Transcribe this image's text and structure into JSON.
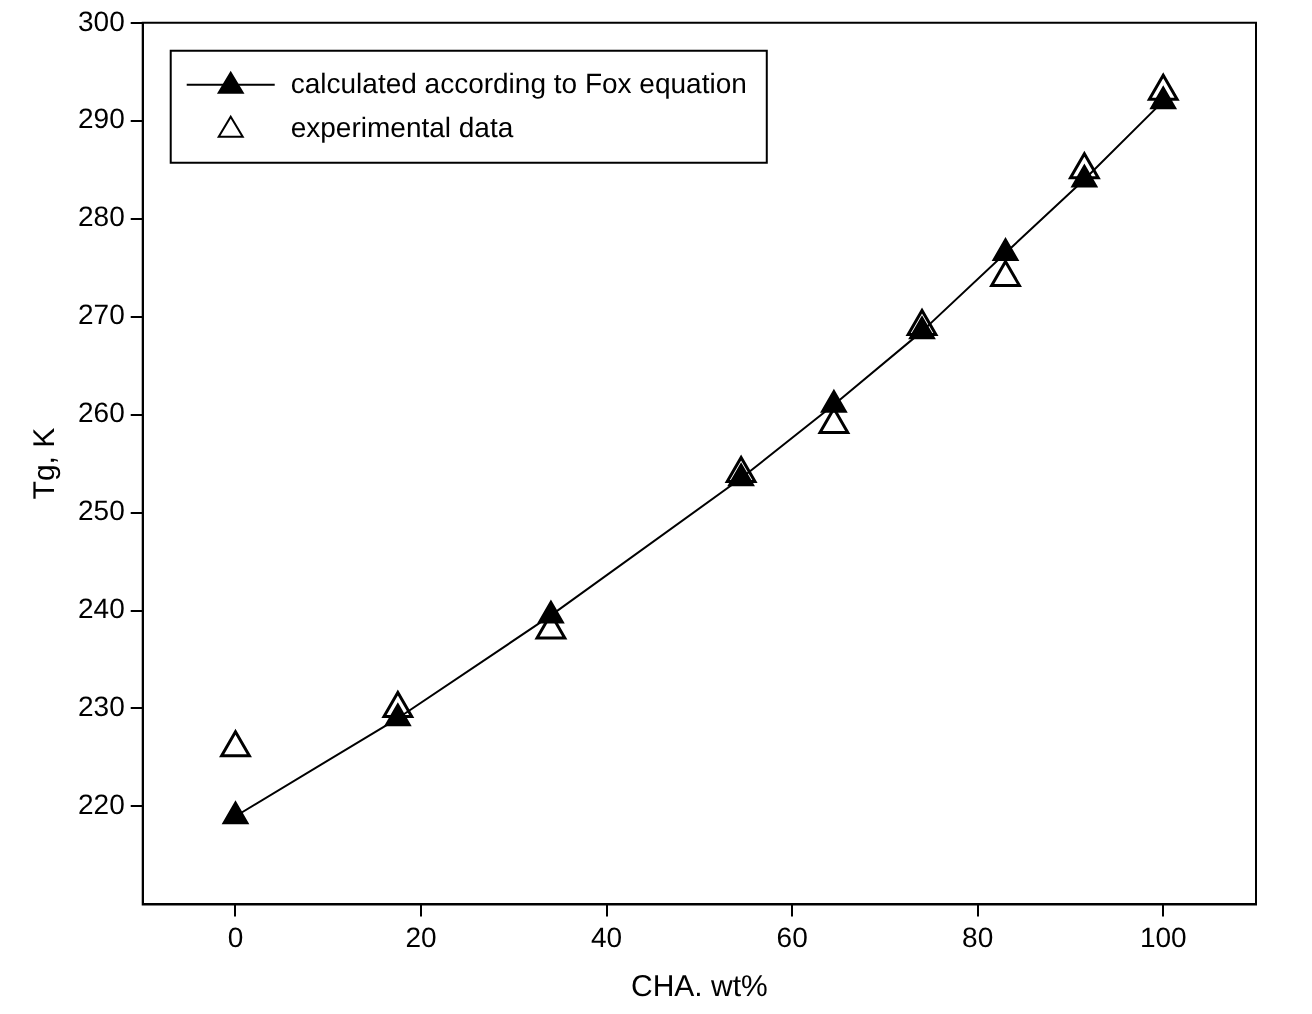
{
  "chart_data": {
    "type": "line",
    "xlabel": "CHA. wt%",
    "ylabel": "Tg, K",
    "xlim": [
      -10,
      110
    ],
    "xticks": [
      0,
      20,
      40,
      60,
      80,
      100
    ],
    "ylim": [
      210,
      300
    ],
    "yticks": [
      220,
      230,
      240,
      250,
      260,
      270,
      280,
      290,
      300
    ],
    "grid": false,
    "legend": "top left",
    "series": [
      {
        "name": "calculated according to Fox equation",
        "type": "line",
        "color": "#000000",
        "marker": "triangle",
        "x": [
          0,
          17.5,
          34,
          54.5,
          64.5,
          74,
          83,
          91.5,
          100
        ],
        "values": [
          219,
          229,
          239.5,
          253.5,
          261,
          268.5,
          276.5,
          284,
          292
        ]
      },
      {
        "name": "experimental data",
        "type": "scatter",
        "color": "#000000",
        "marker": "triangle",
        "x": [
          0,
          17.5,
          34,
          54.5,
          64.5,
          74,
          83,
          91.5,
          100
        ],
        "values": [
          226,
          230,
          238,
          254,
          259,
          269,
          274,
          285,
          293
        ]
      }
    ]
  }
}
